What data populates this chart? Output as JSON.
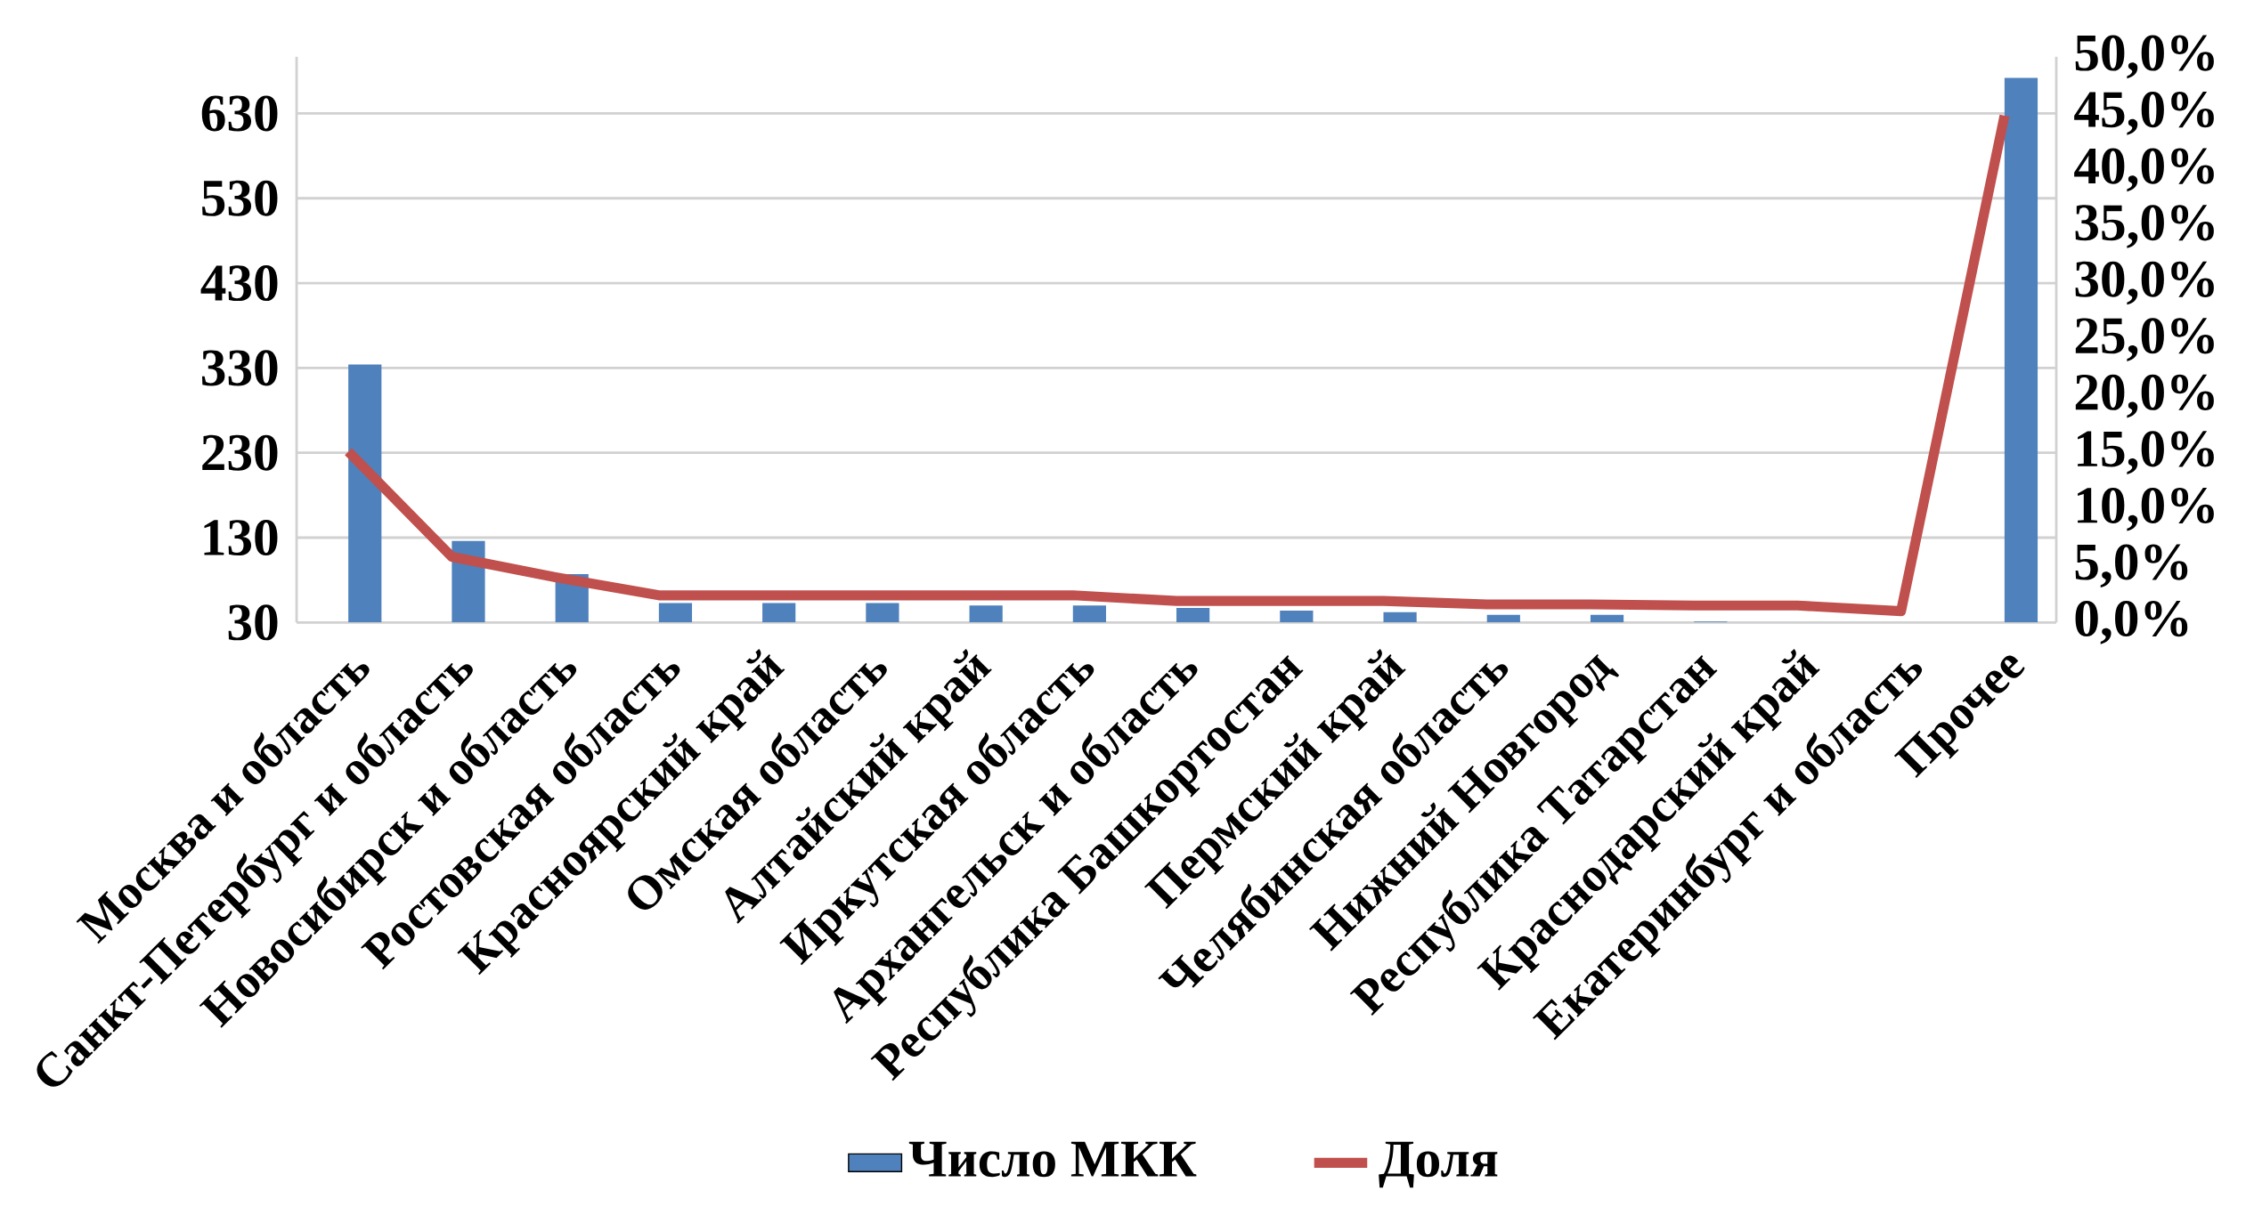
{
  "chart_data": {
    "type": "bar",
    "categories": [
      "Москва и область",
      "Санкт-Петербург и область",
      "Новосибирск и область",
      "Ростовская область",
      "Красноярский край",
      "Омская область",
      "Алтайский край",
      "Иркутская область",
      "Архангельск и область",
      "Республика Башкортостан",
      "Пермский край",
      "Челябинская область",
      "Нижний Новгород",
      "Республика Татарстан",
      "Краснодарский край",
      "Екатеринбург и область",
      "Прочее"
    ],
    "series": [
      {
        "name": "Число МКК",
        "type": "bar",
        "color": "#4f81bd",
        "values": [
          334,
          126,
          87,
          53,
          53,
          53,
          50,
          50,
          47,
          44,
          42,
          39,
          39,
          31,
          30,
          30,
          672
        ]
      },
      {
        "name": "Доля",
        "type": "line",
        "axis": "y2",
        "color": "#c0504d",
        "values": [
          15.1,
          5.8,
          4.0,
          2.4,
          2.4,
          2.4,
          2.4,
          2.4,
          1.9,
          1.9,
          1.9,
          1.6,
          1.6,
          1.5,
          1.5,
          1.0,
          44.8
        ]
      }
    ],
    "ylim": [
      30,
      696.7
    ],
    "yticks": [
      30,
      130,
      230,
      330,
      430,
      530,
      630
    ],
    "y2lim": [
      0,
      50
    ],
    "y2ticks": [
      {
        "value": 0,
        "label": "0,0%"
      },
      {
        "value": 5,
        "label": "5,0%"
      },
      {
        "value": 10,
        "label": "10,0%"
      },
      {
        "value": 15,
        "label": "15,0%"
      },
      {
        "value": 20,
        "label": "20,0%"
      },
      {
        "value": 25,
        "label": "25,0%"
      },
      {
        "value": 30,
        "label": "30,0%"
      },
      {
        "value": 35,
        "label": "35,0%"
      },
      {
        "value": 40,
        "label": "40,0%"
      },
      {
        "value": 45,
        "label": "45,0%"
      },
      {
        "value": 50,
        "label": "50,0%"
      }
    ],
    "grid": "y",
    "legend": "bottom"
  }
}
